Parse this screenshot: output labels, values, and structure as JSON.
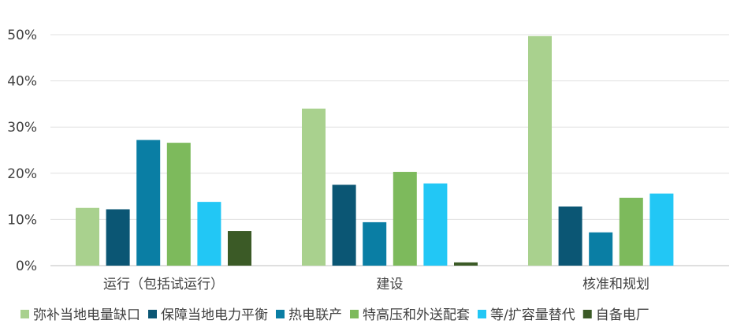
{
  "chart_data": {
    "type": "bar",
    "categories": [
      "运行（包括试运行）",
      "建设",
      "核准和规划"
    ],
    "series": [
      {
        "name": "弥补当地电量缺口",
        "color": "#a9d18e",
        "values": [
          12.5,
          34.0,
          49.7
        ]
      },
      {
        "name": "保障当地电力平衡",
        "color": "#0b5674",
        "values": [
          12.2,
          17.5,
          12.8
        ]
      },
      {
        "name": "热电联产",
        "color": "#0a7ea4",
        "values": [
          27.2,
          9.4,
          7.2
        ]
      },
      {
        "name": "特高压和外送配套",
        "color": "#7dba5c",
        "values": [
          26.6,
          20.3,
          14.7
        ]
      },
      {
        "name": "等/扩容量替代",
        "color": "#22c7f5",
        "values": [
          13.8,
          17.8,
          15.6
        ]
      },
      {
        "name": "自备电厂",
        "color": "#3b5a26",
        "values": [
          7.5,
          0.7,
          0
        ]
      }
    ],
    "yticks": [
      "0%",
      "10%",
      "20%",
      "30%",
      "40%",
      "50%"
    ],
    "ylim": [
      0,
      50
    ],
    "grid": true,
    "legend": "bottom"
  }
}
